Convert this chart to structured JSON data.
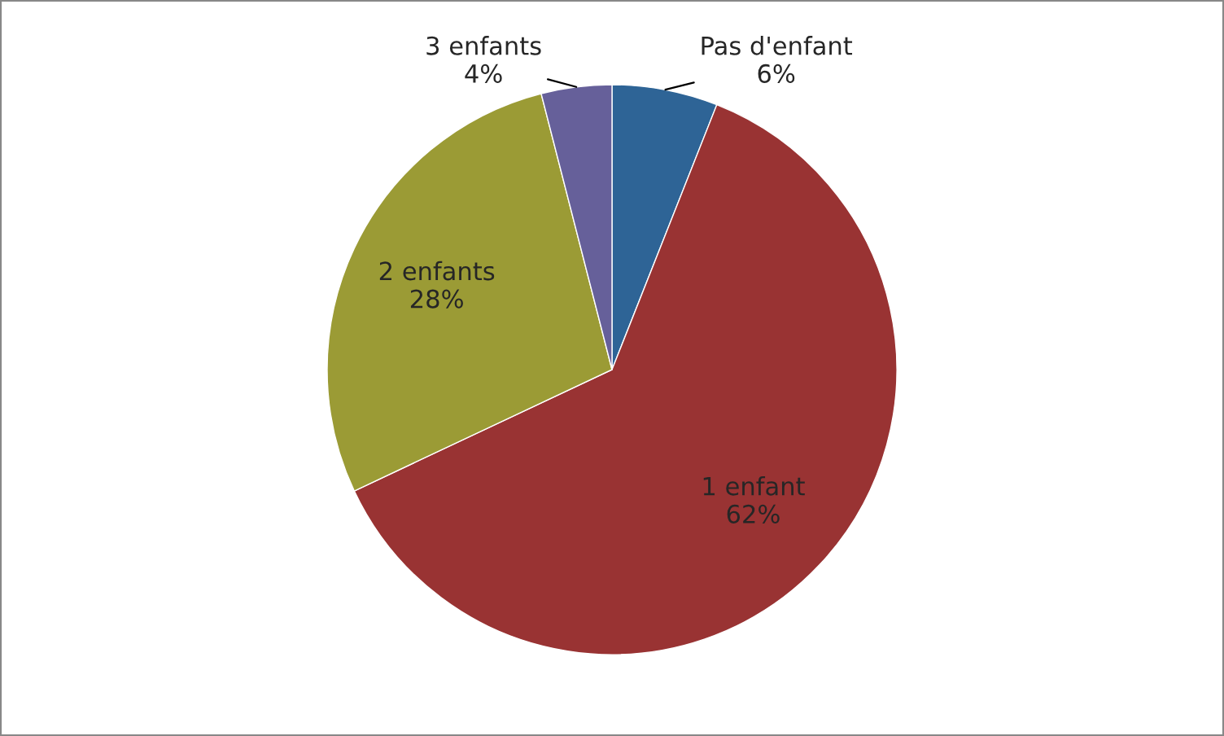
{
  "chart_data": {
    "type": "pie",
    "categories": [
      "Pas d'enfant",
      "1 enfant",
      "2 enfants",
      "3 enfants"
    ],
    "values": [
      6,
      62,
      28,
      4
    ],
    "value_labels": [
      "6%",
      "62%",
      "28%",
      "4%"
    ],
    "colors": [
      "#2e6496",
      "#993333",
      "#9b9b35",
      "#66609a"
    ],
    "legend": false
  }
}
